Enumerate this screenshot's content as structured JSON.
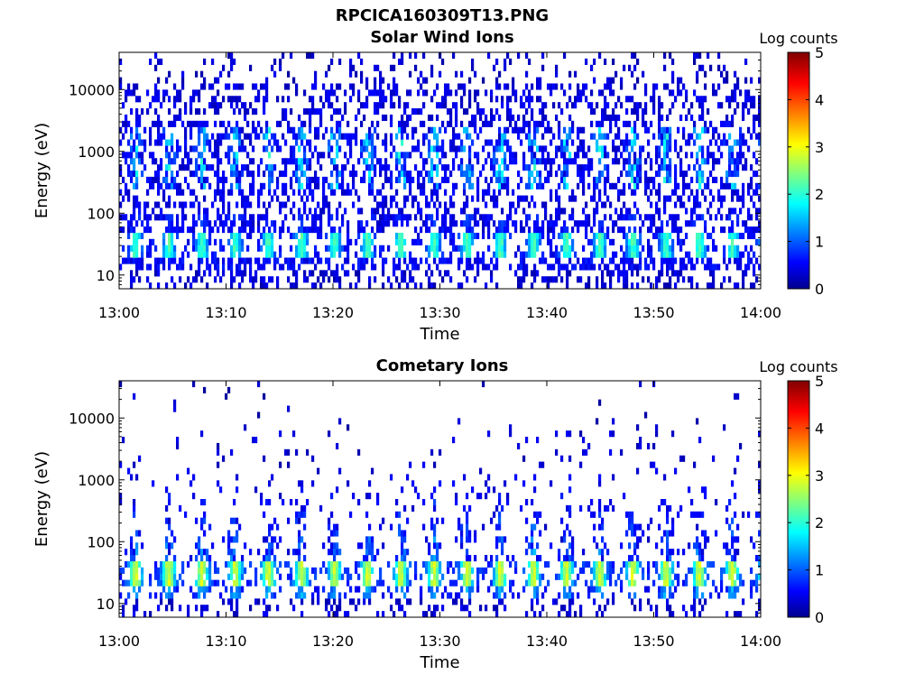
{
  "figure": {
    "title": "RPCICA160309T13.PNG"
  },
  "colorbar": {
    "label": "Log counts",
    "ticks": [
      0,
      1,
      2,
      3,
      4,
      5
    ],
    "colormap": "jet",
    "colors": [
      "#00008f",
      "#0000ff",
      "#00ffff",
      "#ffff00",
      "#ff0000",
      "#800000"
    ]
  },
  "chart_data": [
    {
      "type": "heatmap",
      "title": "Solar Wind Ions",
      "xlabel": "Time",
      "ylabel": "Energy (eV)",
      "xticks": [
        "13:00",
        "13:10",
        "13:20",
        "13:30",
        "13:40",
        "13:50",
        "14:00"
      ],
      "xlim": [
        "13:00",
        "14:00"
      ],
      "yscale": "log",
      "ylim": [
        6,
        40000
      ],
      "yticks": [
        10,
        100,
        1000,
        10000
      ],
      "colorbar_label": "Log counts",
      "clim": [
        0,
        5
      ],
      "period_minutes": 3.1,
      "bands": [
        {
          "energy_eV": 30,
          "log_counts": 2.1,
          "description": "periodic bright band"
        },
        {
          "energy_eV": 600,
          "log_counts": 2.2,
          "description": "periodic bursts 300-2500 eV"
        },
        {
          "energy_eV": 5000,
          "log_counts": 0.5,
          "description": "sparse background to 30 keV"
        }
      ]
    },
    {
      "type": "heatmap",
      "title": "Cometary Ions",
      "xlabel": "Time",
      "ylabel": "Energy (eV)",
      "xticks": [
        "13:00",
        "13:10",
        "13:20",
        "13:30",
        "13:40",
        "13:50",
        "14:00"
      ],
      "xlim": [
        "13:00",
        "14:00"
      ],
      "yscale": "log",
      "ylim": [
        6,
        40000
      ],
      "yticks": [
        10,
        100,
        1000,
        10000
      ],
      "colorbar_label": "Log counts",
      "clim": [
        0,
        5
      ],
      "period_minutes": 3.1,
      "bands": [
        {
          "energy_eV": 30,
          "log_counts": 2.8,
          "description": "periodic bright band"
        },
        {
          "energy_eV": 150,
          "log_counts": 1.3,
          "description": "vertical streaks 40-1500 eV"
        },
        {
          "energy_eV": 20000,
          "log_counts": 0.3,
          "description": "rare scattered counts"
        }
      ]
    }
  ]
}
